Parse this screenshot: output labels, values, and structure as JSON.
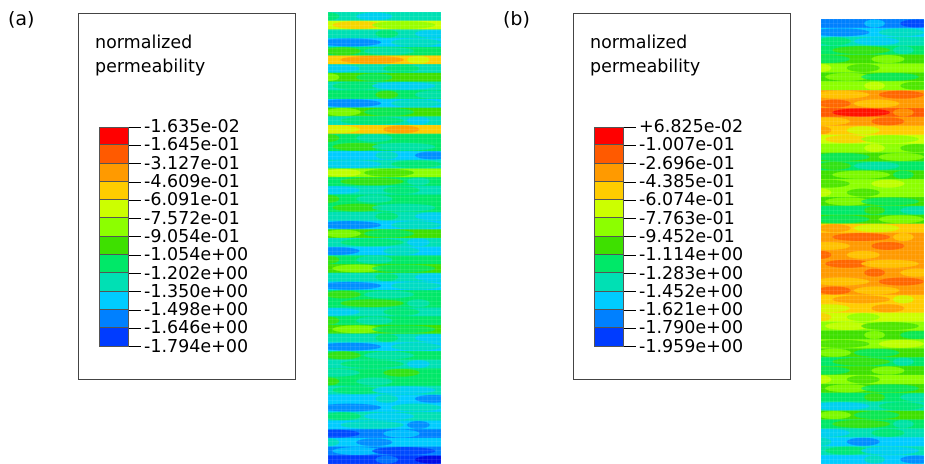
{
  "panels": [
    {
      "label": "(a)",
      "legend_title": [
        "normalized",
        "permeability"
      ],
      "tick_labels": [
        "-1.635e-02",
        "-1.645e-01",
        "-3.127e-01",
        "-4.609e-01",
        "-6.091e-01",
        "-7.572e-01",
        "-9.054e-01",
        "-1.054e+00",
        "-1.202e+00",
        "-1.350e+00",
        "-1.498e+00",
        "-1.646e+00",
        "-1.794e+00"
      ],
      "band_levels": [
        8,
        4,
        8,
        9,
        7,
        3,
        8,
        6,
        8,
        7,
        9,
        6,
        8,
        3,
        7,
        7,
        9,
        8,
        5,
        7,
        8,
        7,
        7,
        8,
        9,
        6,
        8,
        9,
        7,
        6,
        8,
        9,
        7,
        7,
        8,
        7,
        6,
        8,
        9,
        7,
        8,
        7,
        7,
        8,
        9,
        9,
        8,
        9,
        10,
        9,
        10,
        11
      ]
    },
    {
      "label": "(b)",
      "legend_title": [
        "normalized",
        "permeability"
      ],
      "tick_labels": [
        "+6.825e-02",
        "-1.007e-01",
        "-2.696e-01",
        "-4.385e-01",
        "-6.074e-01",
        "-7.763e-01",
        "-9.452e-01",
        "-1.114e+00",
        "-1.283e+00",
        "-1.452e+00",
        "-1.621e+00",
        "-1.790e+00",
        "-1.959e+00"
      ],
      "band_levels": [
        10,
        9,
        8,
        7,
        6,
        5,
        6,
        5,
        2,
        2,
        1,
        2,
        3,
        4,
        5,
        6,
        7,
        6,
        5,
        5,
        6,
        7,
        6,
        3,
        2,
        2,
        2,
        2,
        2,
        2,
        2,
        3,
        3,
        4,
        5,
        6,
        5,
        6,
        7,
        6,
        5,
        6,
        7,
        8,
        6,
        7,
        8,
        9,
        8,
        9
      ]
    }
  ],
  "colormap": [
    "#ff0000",
    "#ff5a00",
    "#ff9a00",
    "#ffcc00",
    "#ccff00",
    "#8cff00",
    "#3ee000",
    "#00e868",
    "#00e0b4",
    "#00ccff",
    "#0080ff",
    "#003cff",
    "#0000e0"
  ]
}
